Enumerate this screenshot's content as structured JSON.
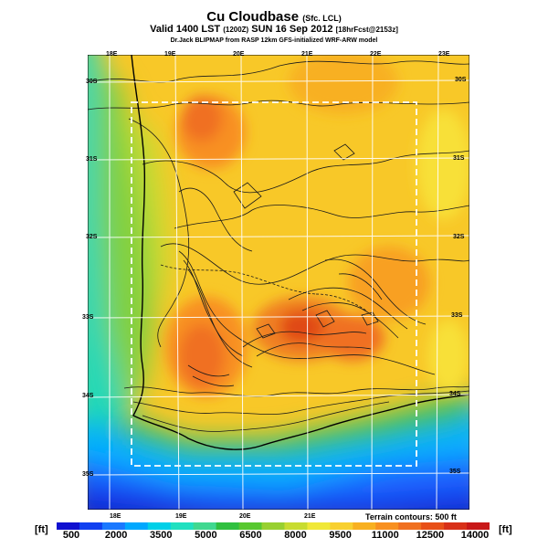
{
  "header": {
    "title": "Cu Cloudbase",
    "title_suffix": "(Sfc. LCL)",
    "valid_line": "Valid 1400 LST",
    "valid_zone": "(1200Z)",
    "valid_date": "SUN 16 Sep 2012",
    "forecast": "[18hrFcst@2153z]",
    "credit": "Dr.Jack BLIPMAP from RASP 12km GFS-initialized WRF-ARW model"
  },
  "map": {
    "lon_labels_top": [
      "18E",
      "19E",
      "20E",
      "21E",
      "22E",
      "23E"
    ],
    "lon_labels_bottom": [
      "18E",
      "19E",
      "20E",
      "21E"
    ],
    "lat_labels_left": [
      "30S",
      "31S",
      "32S",
      "33S",
      "34S",
      "35S"
    ],
    "lat_labels_right": [
      "30S",
      "31S",
      "32S",
      "33S",
      "34S",
      "35S"
    ],
    "terrain_note": "Terrain contours: 500 ft"
  },
  "colorbar": {
    "unit_left": "[ft]",
    "unit_right": "[ft]",
    "ticks": [
      "500",
      "2000",
      "3500",
      "5000",
      "6500",
      "8000",
      "9500",
      "11000",
      "12500",
      "14000"
    ],
    "colors": [
      "#1010d0",
      "#1040f0",
      "#1a78ff",
      "#00a8ff",
      "#00d0e8",
      "#20e0c0",
      "#40d890",
      "#30c040",
      "#58c830",
      "#98d030",
      "#c8dc30",
      "#f0e838",
      "#f8d030",
      "#f8b020",
      "#f89020",
      "#f07020",
      "#e85018",
      "#d83018",
      "#c81818"
    ]
  }
}
